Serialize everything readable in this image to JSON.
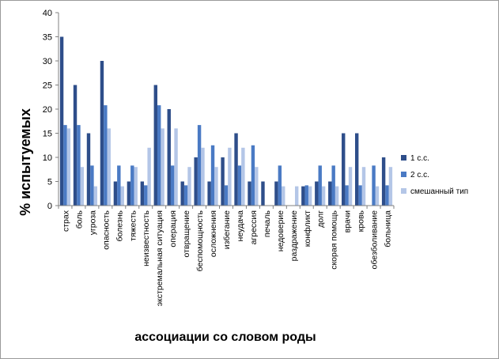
{
  "chart_data": {
    "type": "bar",
    "title": "",
    "xlabel": "ассоциации со словом роды",
    "ylabel": "% испытуемых",
    "ylim": [
      0,
      40
    ],
    "yticks": [
      0,
      5,
      10,
      15,
      20,
      25,
      30,
      35,
      40
    ],
    "grid": false,
    "legend_position": "right",
    "categories": [
      "страх",
      "боль",
      "угроза",
      "опасность",
      "болезнь",
      "тяжесть",
      "неизвестность",
      "экстремальная ситуация",
      "операция",
      "отвращение",
      "беспомощность",
      "осложнения",
      "избегание",
      "неудача",
      "агрессия",
      "печаль",
      "недоверие",
      "раздражение",
      "конфликт",
      "долг",
      "скорая помощь",
      "врачи",
      "кровь",
      "обезболивание",
      "больница"
    ],
    "series": [
      {
        "name": "1 с.с.",
        "color": "#2E4E8A",
        "values": [
          35,
          25,
          15,
          30,
          5,
          5,
          5,
          25,
          20,
          5,
          10,
          5,
          10,
          15,
          5,
          5,
          5,
          0,
          4,
          5,
          5,
          15,
          15,
          0,
          10
        ]
      },
      {
        "name": "2 с.с.",
        "color": "#4A7AC4",
        "values": [
          16.7,
          16.7,
          8.3,
          20.8,
          8.3,
          8.3,
          4.2,
          20.8,
          8.3,
          4.2,
          16.7,
          12.5,
          4.2,
          8.3,
          12.5,
          0,
          8.3,
          0,
          4.2,
          8.3,
          8.3,
          4.2,
          4.2,
          8.3,
          4.2
        ]
      },
      {
        "name": "смешанный тип",
        "color": "#B4C6E7",
        "values": [
          16,
          8,
          4,
          16,
          4,
          8,
          12,
          16,
          16,
          8,
          12,
          8,
          12,
          12,
          8,
          0,
          4,
          4,
          4,
          4,
          4,
          8,
          8,
          4,
          8
        ]
      }
    ]
  }
}
